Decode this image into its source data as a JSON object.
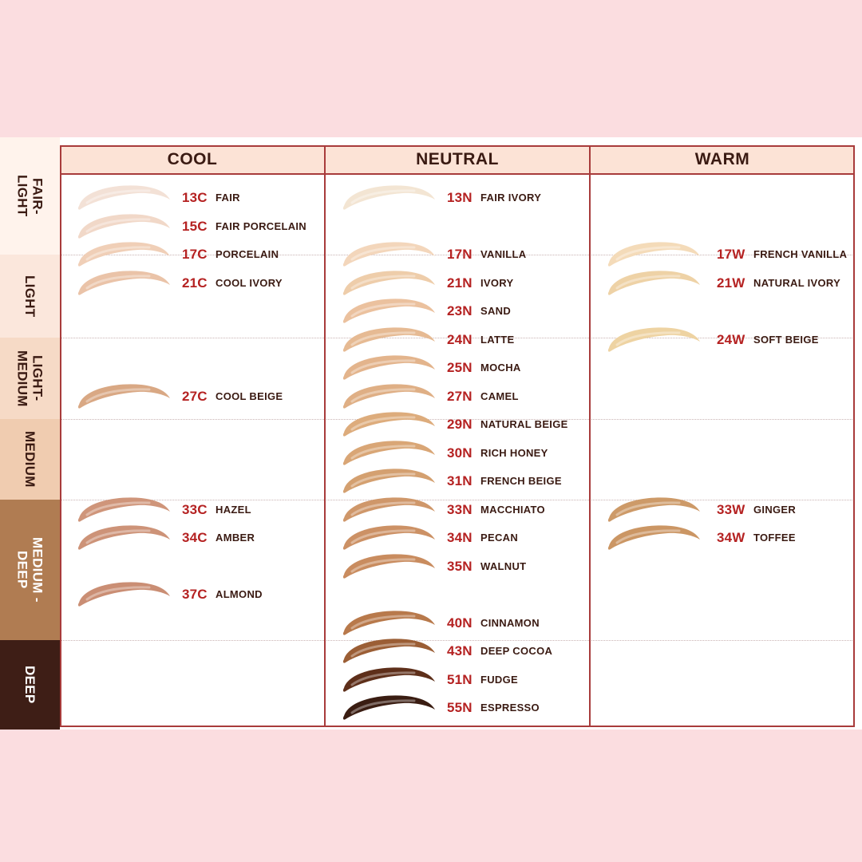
{
  "columns": [
    {
      "label": "COOL"
    },
    {
      "label": "NEUTRAL"
    },
    {
      "label": "WARM"
    }
  ],
  "depth_bands": [
    {
      "label": "FAIR-\nLIGHT",
      "bg": "#fff3ec",
      "text_color": "#3a1a12"
    },
    {
      "label": "LIGHT",
      "bg": "#fbe7dc",
      "text_color": "#3a1a12"
    },
    {
      "label": "LIGHT-\nMEDIUM",
      "bg": "#f6dac6",
      "text_color": "#3a1a12"
    },
    {
      "label": "MEDIUM",
      "bg": "#f0ccb0",
      "text_color": "#3a1a12"
    },
    {
      "label": "MEDIUM -\nDEEP",
      "bg": "#b07c52",
      "text_color": "#ffffff"
    },
    {
      "label": "DEEP",
      "bg": "#3e1e16",
      "text_color": "#ffffff"
    }
  ],
  "colors": {
    "header_bg": "#fce3d6",
    "frame": "#a83b3b",
    "code_text": "#b52222",
    "name_text": "#3a1a12",
    "outer_background": "#fbdde0"
  },
  "shades": {
    "cool": [
      {
        "code": "13C",
        "name": "FAIR",
        "color": "#f3e1d6"
      },
      {
        "code": "15C",
        "name": "FAIR PORCELAIN",
        "color": "#f1d8c8"
      },
      {
        "code": "17C",
        "name": "PORCELAIN",
        "color": "#f0cfb7"
      },
      {
        "code": "21C",
        "name": "COOL IVORY",
        "color": "#eac3a8"
      },
      {
        "code": "27C",
        "name": "COOL BEIGE",
        "color": "#d9a884"
      },
      {
        "code": "33C",
        "name": "HAZEL",
        "color": "#cf957a"
      },
      {
        "code": "34C",
        "name": "AMBER",
        "color": "#cd9378"
      },
      {
        "code": "37C",
        "name": "ALMOND",
        "color": "#ca8e74"
      }
    ],
    "neutral": [
      {
        "code": "13N",
        "name": "FAIR IVORY",
        "color": "#f3e5d3"
      },
      {
        "code": "17N",
        "name": "VANILLA",
        "color": "#f3d6bb"
      },
      {
        "code": "21N",
        "name": "IVORY",
        "color": "#eecdaa"
      },
      {
        "code": "23N",
        "name": "SAND",
        "color": "#ebc19e"
      },
      {
        "code": "24N",
        "name": "LATTE",
        "color": "#e6ba93"
      },
      {
        "code": "25N",
        "name": "MOCHA",
        "color": "#e3b48c"
      },
      {
        "code": "27N",
        "name": "CAMEL",
        "color": "#dfaf85"
      },
      {
        "code": "29N",
        "name": "NATURAL BEIGE",
        "color": "#ddac7c"
      },
      {
        "code": "30N",
        "name": "RICH HONEY",
        "color": "#d9a676"
      },
      {
        "code": "31N",
        "name": "FRENCH BEIGE",
        "color": "#d4a070"
      },
      {
        "code": "33N",
        "name": "MACCHIATO",
        "color": "#cf976a"
      },
      {
        "code": "34N",
        "name": "PECAN",
        "color": "#cc9165"
      },
      {
        "code": "35N",
        "name": "WALNUT",
        "color": "#c98c5f"
      },
      {
        "code": "40N",
        "name": "CINNAMON",
        "color": "#b8794b"
      },
      {
        "code": "43N",
        "name": "DEEP COCOA",
        "color": "#9b5e35"
      },
      {
        "code": "51N",
        "name": "FUDGE",
        "color": "#5e2f1a"
      },
      {
        "code": "55N",
        "name": "ESPRESSO",
        "color": "#3a1d12"
      }
    ],
    "warm": [
      {
        "code": "17W",
        "name": "FRENCH VANILLA",
        "color": "#f4dbb9"
      },
      {
        "code": "21W",
        "name": "NATURAL IVORY",
        "color": "#eed2a6"
      },
      {
        "code": "24W",
        "name": "SOFT BEIGE",
        "color": "#eed3a2"
      },
      {
        "code": "33W",
        "name": "GINGER",
        "color": "#cd9a68"
      },
      {
        "code": "34W",
        "name": "TOFFEE",
        "color": "#cb9664"
      }
    ]
  }
}
